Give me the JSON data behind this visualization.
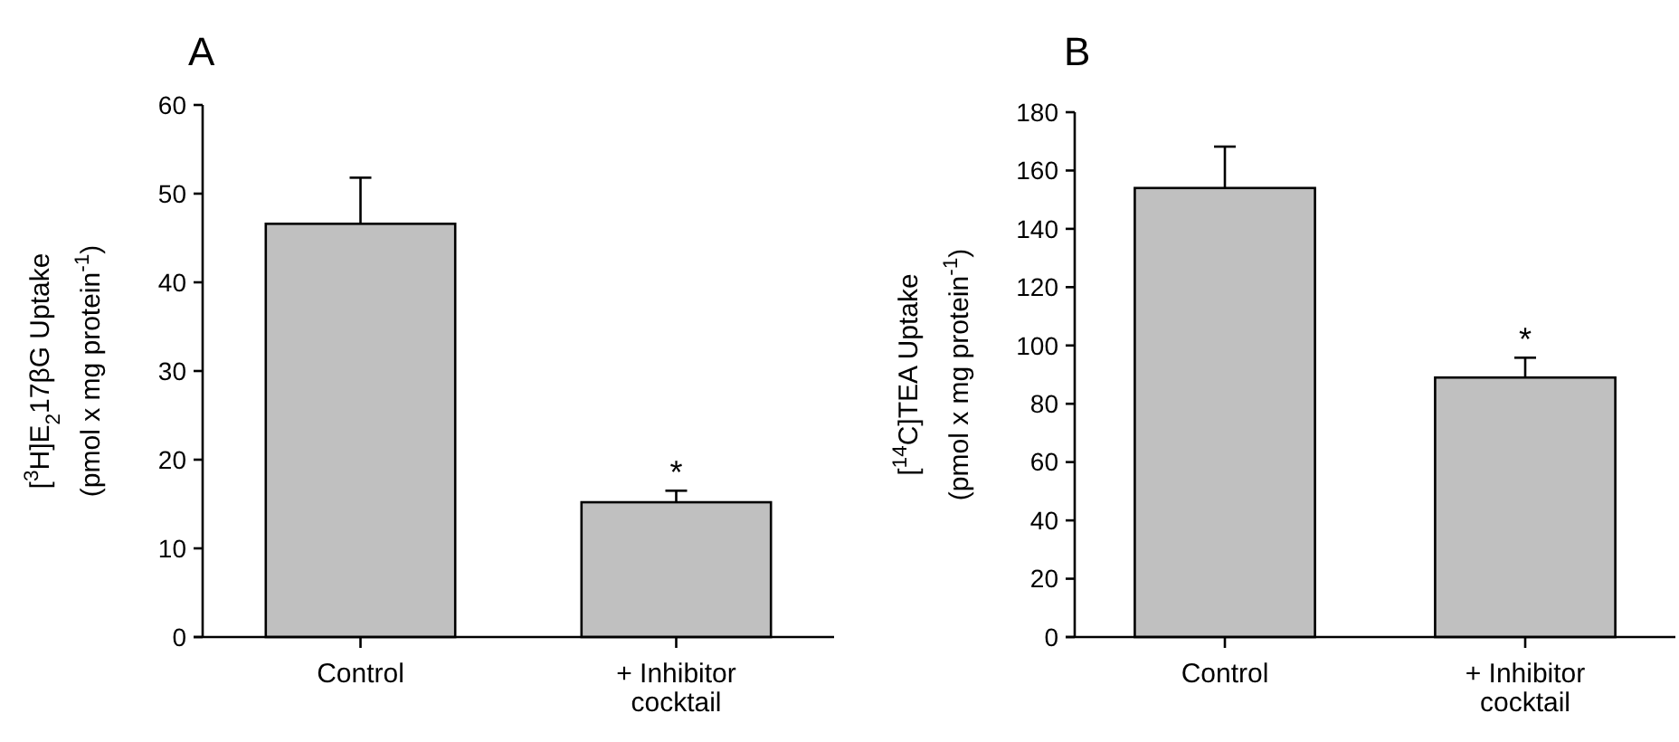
{
  "chart_data": [
    {
      "type": "bar",
      "title": "A",
      "ylabel": "[$^{3}$H]E$_{2}$17βG Uptake\n(pmol x mg protein$^{-1}$)",
      "categories": [
        "Control",
        "+ Inhibitor cocktail"
      ],
      "values": [
        46.6,
        15.2
      ],
      "errors": [
        [
          46.6,
          51.8
        ],
        [
          15.2,
          16.5
        ]
      ],
      "color": "#c0c0c0",
      "ylim": [
        0,
        60
      ],
      "yticks": [
        0,
        10,
        20,
        30,
        40,
        50,
        60
      ],
      "grid": false,
      "annotations": [
        {
          "text": "*",
          "x": "+ Inhibitor cocktail",
          "y": 16.5
        }
      ]
    },
    {
      "type": "bar",
      "title": "B",
      "ylabel": "[$^{14}$C]TEA Uptake\n(pmol x mg protein$^{-1}$)",
      "categories": [
        "Control",
        "+ Inhibitor cocktail"
      ],
      "values": [
        154,
        89
      ],
      "errors": [
        [
          154,
          168.2
        ],
        [
          89,
          95.8
        ]
      ],
      "color": "#c0c0c0",
      "ylim": [
        0,
        180
      ],
      "yticks": [
        0,
        20,
        40,
        60,
        80,
        100,
        120,
        140,
        160,
        180
      ],
      "grid": false,
      "annotations": [
        {
          "text": "*",
          "x": "+ Inhibitor cocktail",
          "y": 95.8
        }
      ]
    }
  ]
}
